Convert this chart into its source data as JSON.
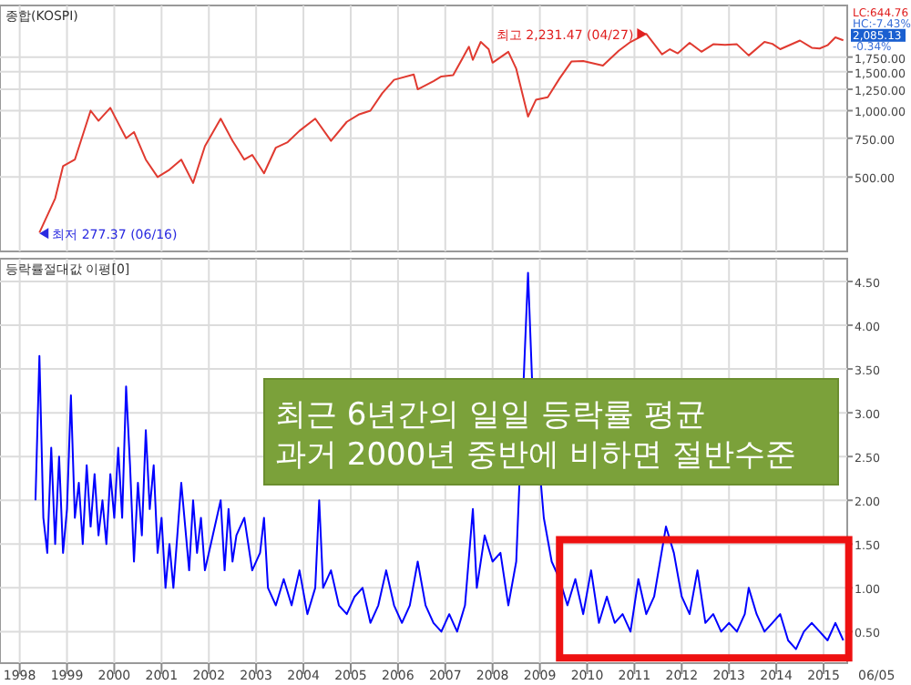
{
  "chart_data": [
    {
      "type": "line",
      "title": "종합(KOSPI)",
      "log": true,
      "grid": true,
      "tick_labels": "y",
      "x": [
        "1998-06",
        "1998-10",
        "1998-12",
        "1999-03",
        "1999-07",
        "1999-09",
        "1999-12",
        "2000-01",
        "2000-04",
        "2000-06",
        "2000-09",
        "2000-12",
        "2001-03",
        "2001-06",
        "2001-09",
        "2001-12",
        "2002-04",
        "2002-07",
        "2002-10",
        "2002-12",
        "2003-03",
        "2003-06",
        "2003-09",
        "2003-12",
        "2004-04",
        "2004-08",
        "2004-12",
        "2005-03",
        "2005-06",
        "2005-09",
        "2005-12",
        "2006-05",
        "2006-06",
        "2006-10",
        "2006-12",
        "2007-03",
        "2007-07",
        "2007-08",
        "2007-10",
        "2007-12",
        "2008-01",
        "2008-05",
        "2008-07",
        "2008-10",
        "2008-12",
        "2009-03",
        "2009-06",
        "2009-09",
        "2009-12",
        "2010-05",
        "2010-09",
        "2010-12",
        "2011-04",
        "2011-08",
        "2011-10",
        "2011-12",
        "2012-03",
        "2012-06",
        "2012-09",
        "2012-12",
        "2013-03",
        "2013-06",
        "2013-10",
        "2013-12",
        "2014-02",
        "2014-07",
        "2014-10",
        "2014-12",
        "2015-02",
        "2015-04",
        "2015-06"
      ],
      "series": [
        {
          "color": "#e03a30",
          "values": [
            280,
            400,
            560,
            600,
            1000,
            900,
            1030,
            950,
            750,
            800,
            600,
            500,
            540,
            600,
            470,
            690,
            920,
            730,
            600,
            630,
            520,
            680,
            720,
            810,
            920,
            730,
            890,
            960,
            1000,
            1200,
            1380,
            1460,
            1250,
            1360,
            1430,
            1450,
            1950,
            1700,
            2050,
            1900,
            1650,
            1850,
            1550,
            940,
            1120,
            1150,
            1400,
            1670,
            1680,
            1600,
            1870,
            2050,
            2230,
            1800,
            1900,
            1820,
            2030,
            1850,
            2000,
            1990,
            2000,
            1780,
            2050,
            2010,
            1900,
            2080,
            1930,
            1915,
            1980,
            2150,
            2085
          ]
        }
      ],
      "xlim": [
        "1997-08",
        "2015-07"
      ],
      "ylim": [
        230,
        3000
      ],
      "yticks": [
        {
          "value": 500,
          "label": "500.00"
        },
        {
          "value": 750,
          "label": "750.00"
        },
        {
          "value": 1000,
          "label": "1,000.00"
        },
        {
          "value": 1250,
          "label": "1,250.00"
        },
        {
          "value": 1500,
          "label": "1,500.00"
        },
        {
          "value": 1750,
          "label": "1,750.00"
        }
      ],
      "annotations": [
        {
          "text": "최고 2,231.47 (04/27)",
          "x": "2011-04",
          "y": 2231.47
        },
        {
          "text": "최저 277.37 (06/16)",
          "x": "1998-06",
          "y": 277.37
        },
        "LC:644.76",
        "HC:-7.43%",
        "2,085.13",
        "-0.34%"
      ]
    },
    {
      "type": "line",
      "title": "등락률절대값 이평[0]",
      "grid": true,
      "x": [
        "1998-05",
        "1998-06",
        "1998-07",
        "1998-08",
        "1998-09",
        "1998-10",
        "1998-11",
        "1998-12",
        "1999-01",
        "1999-02",
        "1999-03",
        "1999-04",
        "1999-05",
        "1999-06",
        "1999-07",
        "1999-08",
        "1999-09",
        "1999-10",
        "1999-11",
        "1999-12",
        "2000-01",
        "2000-02",
        "2000-03",
        "2000-04",
        "2000-05",
        "2000-06",
        "2000-07",
        "2000-08",
        "2000-09",
        "2000-10",
        "2000-11",
        "2000-12",
        "2001-01",
        "2001-02",
        "2001-03",
        "2001-04",
        "2001-05",
        "2001-06",
        "2001-07",
        "2001-08",
        "2001-09",
        "2001-10",
        "2001-11",
        "2001-12",
        "2002-02",
        "2002-04",
        "2002-05",
        "2002-06",
        "2002-07",
        "2002-08",
        "2002-10",
        "2002-12",
        "2003-02",
        "2003-03",
        "2003-04",
        "2003-06",
        "2003-08",
        "2003-10",
        "2003-12",
        "2004-02",
        "2004-04",
        "2004-05",
        "2004-06",
        "2004-08",
        "2004-10",
        "2004-12",
        "2005-02",
        "2005-04",
        "2005-06",
        "2005-08",
        "2005-10",
        "2005-12",
        "2006-02",
        "2006-04",
        "2006-06",
        "2006-08",
        "2006-10",
        "2006-12",
        "2007-02",
        "2007-04",
        "2007-06",
        "2007-08",
        "2007-09",
        "2007-11",
        "2008-01",
        "2008-03",
        "2008-05",
        "2008-07",
        "2008-10",
        "2008-11",
        "2009-02",
        "2009-04",
        "2009-06",
        "2009-08",
        "2009-10",
        "2009-12",
        "2010-02",
        "2010-04",
        "2010-06",
        "2010-08",
        "2010-10",
        "2010-12",
        "2011-02",
        "2011-04",
        "2011-06",
        "2011-09",
        "2011-11",
        "2012-01",
        "2012-03",
        "2012-05",
        "2012-07",
        "2012-09",
        "2012-11",
        "2013-01",
        "2013-03",
        "2013-05",
        "2013-06",
        "2013-08",
        "2013-10",
        "2013-12",
        "2014-02",
        "2014-04",
        "2014-06",
        "2014-08",
        "2014-10",
        "2014-12",
        "2015-02",
        "2015-04",
        "2015-06"
      ],
      "series": [
        {
          "color": "#0000ff",
          "values": [
            2.0,
            3.65,
            1.8,
            1.4,
            2.6,
            1.5,
            2.5,
            1.4,
            1.9,
            3.2,
            1.8,
            2.2,
            1.5,
            2.4,
            1.7,
            2.3,
            1.6,
            2.0,
            1.5,
            2.3,
            1.8,
            2.6,
            1.8,
            3.3,
            2.4,
            1.3,
            2.2,
            1.6,
            2.8,
            1.9,
            2.4,
            1.4,
            1.8,
            1.0,
            1.5,
            1.0,
            1.6,
            2.2,
            1.7,
            1.2,
            2.0,
            1.4,
            1.8,
            1.2,
            1.6,
            2.0,
            1.2,
            1.9,
            1.3,
            1.6,
            1.8,
            1.2,
            1.4,
            1.8,
            1.0,
            0.8,
            1.1,
            0.8,
            1.2,
            0.7,
            1.0,
            2.0,
            1.0,
            1.2,
            0.8,
            0.7,
            0.9,
            1.0,
            0.6,
            0.8,
            1.2,
            0.8,
            0.6,
            0.8,
            1.3,
            0.8,
            0.6,
            0.5,
            0.7,
            0.5,
            0.8,
            1.9,
            1.0,
            1.6,
            1.3,
            1.4,
            0.8,
            1.3,
            4.6,
            3.4,
            1.8,
            1.3,
            1.1,
            0.8,
            1.1,
            0.7,
            1.2,
            0.6,
            0.9,
            0.6,
            0.7,
            0.5,
            1.1,
            0.7,
            0.9,
            1.7,
            1.4,
            0.9,
            0.7,
            1.2,
            0.6,
            0.7,
            0.5,
            0.6,
            0.5,
            0.7,
            1.0,
            0.7,
            0.5,
            0.6,
            0.7,
            0.4,
            0.3,
            0.5,
            0.6,
            0.5,
            0.4,
            0.6,
            0.4
          ]
        }
      ],
      "xlim": [
        "1997-08",
        "2015-07"
      ],
      "ylim": [
        0.14,
        4.76
      ],
      "xticks": [
        {
          "value": "1998-01",
          "label": "1998"
        },
        {
          "value": "1999-01",
          "label": "1999"
        },
        {
          "value": "2000-01",
          "label": "2000"
        },
        {
          "value": "2001-01",
          "label": "2001"
        },
        {
          "value": "2002-01",
          "label": "2002"
        },
        {
          "value": "2003-01",
          "label": "2003"
        },
        {
          "value": "2004-01",
          "label": "2004"
        },
        {
          "value": "2005-01",
          "label": "2005"
        },
        {
          "value": "2006-01",
          "label": "2006"
        },
        {
          "value": "2007-01",
          "label": "2007"
        },
        {
          "value": "2008-01",
          "label": "2008"
        },
        {
          "value": "2009-01",
          "label": "2009"
        },
        {
          "value": "2010-01",
          "label": "2010"
        },
        {
          "value": "2011-01",
          "label": "2011"
        },
        {
          "value": "2012-01",
          "label": "2012"
        },
        {
          "value": "2013-01",
          "label": "2013"
        },
        {
          "value": "2014-01",
          "label": "2014"
        },
        {
          "value": "2015-01",
          "label": "2015"
        }
      ],
      "yticks": [
        {
          "value": 0.5,
          "label": "0.50"
        },
        {
          "value": 1.0,
          "label": "1.00"
        },
        {
          "value": 1.5,
          "label": "1.50"
        },
        {
          "value": 2.0,
          "label": "2.00"
        },
        {
          "value": 2.5,
          "label": "2.50"
        },
        {
          "value": 3.0,
          "label": "3.00"
        },
        {
          "value": 3.5,
          "label": "3.50"
        },
        {
          "value": 4.0,
          "label": "4.00"
        },
        {
          "value": 4.5,
          "label": "4.50"
        }
      ],
      "annotations": [
        "최근 6년간의 일일 등락률 평균\n과거 2000년 중반에 비하면 절반수준",
        "06/05"
      ]
    }
  ]
}
